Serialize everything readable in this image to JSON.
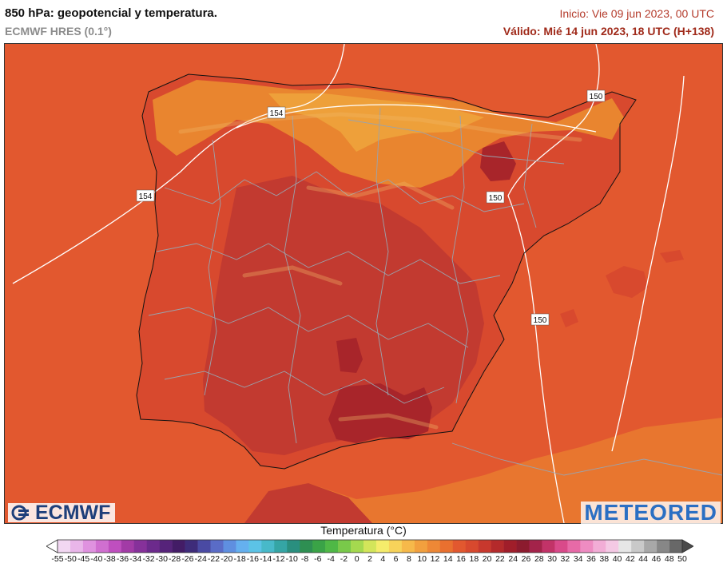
{
  "header": {
    "title": "850 hPa: geopotencial y temperatura.",
    "model": "ECMWF HRES (0.1°)",
    "init": "Inicio: Vie 09 jun 2023, 00 UTC",
    "valid": "Válido: Mié 14 jun 2023, 18 UTC (H+138)"
  },
  "map": {
    "geopotential_labels": [
      {
        "id": "gp-154-north",
        "text": "154"
      },
      {
        "id": "gp-154-west",
        "text": "154"
      },
      {
        "id": "gp-150-pyrenees",
        "text": "150"
      },
      {
        "id": "gp-150-ebro",
        "text": "150"
      },
      {
        "id": "gp-150-east",
        "text": "150"
      }
    ],
    "colors": {
      "sea": "#e2582f",
      "land_warm": "#d8492e",
      "land_hot": "#c23a30",
      "land_hottest": "#a8252a",
      "north_cooler": "#e9852f",
      "north_coolest": "#eea03a",
      "africa": "#e8762f",
      "isohypse": "#ffffff",
      "borders": "#9aa3ad",
      "coast": "#111111"
    }
  },
  "logos": {
    "ecmwf": "ECMWF",
    "meteored": "METEORED"
  },
  "legend": {
    "title": "Temperatura (°C)",
    "ticks": [
      "-55",
      "-50",
      "-45",
      "-40",
      "-38",
      "-36",
      "-34",
      "-32",
      "-30",
      "-28",
      "-26",
      "-24",
      "-22",
      "-20",
      "-18",
      "-16",
      "-14",
      "-12",
      "-10",
      "-8",
      "-6",
      "-4",
      "-2",
      "0",
      "2",
      "4",
      "6",
      "8",
      "10",
      "12",
      "14",
      "16",
      "18",
      "20",
      "22",
      "24",
      "26",
      "28",
      "30",
      "32",
      "34",
      "36",
      "38",
      "40",
      "42",
      "44",
      "46",
      "48",
      "50"
    ],
    "colors": [
      "#ffffff",
      "#f2d7f2",
      "#e9b6e9",
      "#df92df",
      "#d06fd0",
      "#bf4fbf",
      "#a23ba6",
      "#86319a",
      "#6c2a8c",
      "#56237a",
      "#431c66",
      "#3e2c7a",
      "#4a4aa3",
      "#5a6cc7",
      "#5f8fe0",
      "#65b0ef",
      "#5cc3e6",
      "#48b9c9",
      "#35a5a5",
      "#2a8f7f",
      "#2e8f52",
      "#3aa347",
      "#4fb846",
      "#79c94a",
      "#a5d94f",
      "#d3e55a",
      "#f5ec6b",
      "#f7d35a",
      "#f6b94a",
      "#f2a03e",
      "#ee8836",
      "#e9702f",
      "#e2582f",
      "#d8492e",
      "#c8382d",
      "#b42a2b",
      "#a01e2a",
      "#8c1b2e",
      "#a3234a",
      "#c23368",
      "#d94a8a",
      "#e76aa7",
      "#ee8cc2",
      "#f2add6",
      "#f4c9e4",
      "#e6e6e6",
      "#c9c9c9",
      "#a8a8a8",
      "#878787",
      "#686868",
      "#4a4a4a"
    ]
  }
}
